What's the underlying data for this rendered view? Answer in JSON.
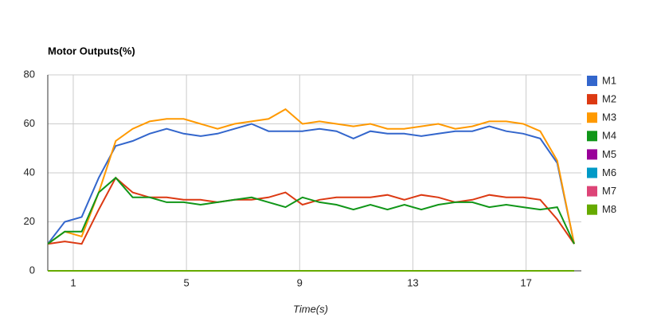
{
  "chart_data": {
    "type": "line",
    "title": "Motor Outputs(%)",
    "x_label": "Time(s)",
    "x": [
      0.1,
      0.7,
      1.3,
      1.9,
      2.5,
      3.1,
      3.7,
      4.3,
      4.9,
      5.5,
      6.1,
      6.7,
      7.3,
      7.9,
      8.5,
      9.1,
      9.7,
      10.3,
      10.9,
      11.5,
      12.1,
      12.7,
      13.3,
      13.9,
      14.5,
      15.1,
      15.7,
      16.3,
      16.9,
      17.5,
      18.1,
      18.7
    ],
    "xlim": [
      0.1,
      18.7
    ],
    "xticks": [
      1,
      5,
      9,
      13,
      17
    ],
    "ylim": [
      0,
      80
    ],
    "yticks": [
      0,
      20,
      40,
      60,
      80
    ],
    "grid": true,
    "legend": "right",
    "series": [
      {
        "name": "M1",
        "color": "#3366cc",
        "values": [
          11,
          20,
          22,
          38,
          51,
          53,
          56,
          58,
          56,
          55,
          56,
          58,
          60,
          57,
          57,
          57,
          58,
          57,
          54,
          57,
          56,
          56,
          55,
          56,
          57,
          57,
          59,
          57,
          56,
          54,
          44,
          11
        ]
      },
      {
        "name": "M2",
        "color": "#dc3912",
        "values": [
          11,
          12,
          11,
          25,
          38,
          32,
          30,
          30,
          29,
          29,
          28,
          29,
          29,
          30,
          32,
          27,
          29,
          30,
          30,
          30,
          31,
          29,
          31,
          30,
          28,
          29,
          31,
          30,
          30,
          29,
          21,
          11
        ]
      },
      {
        "name": "M3",
        "color": "#ff9900",
        "values": [
          11,
          16,
          14,
          32,
          53,
          58,
          61,
          62,
          62,
          60,
          58,
          60,
          61,
          62,
          66,
          60,
          61,
          60,
          59,
          60,
          58,
          58,
          59,
          60,
          58,
          59,
          61,
          61,
          60,
          57,
          45,
          11
        ]
      },
      {
        "name": "M4",
        "color": "#109618",
        "values": [
          11,
          16,
          16,
          32,
          38,
          30,
          30,
          28,
          28,
          27,
          28,
          29,
          30,
          28,
          26,
          30,
          28,
          27,
          25,
          27,
          25,
          27,
          25,
          27,
          28,
          28,
          26,
          27,
          26,
          25,
          26,
          11
        ]
      },
      {
        "name": "M5",
        "color": "#990099",
        "values": [
          0,
          0,
          0,
          0,
          0,
          0,
          0,
          0,
          0,
          0,
          0,
          0,
          0,
          0,
          0,
          0,
          0,
          0,
          0,
          0,
          0,
          0,
          0,
          0,
          0,
          0,
          0,
          0,
          0,
          0,
          0,
          0
        ]
      },
      {
        "name": "M6",
        "color": "#0099c6",
        "values": [
          0,
          0,
          0,
          0,
          0,
          0,
          0,
          0,
          0,
          0,
          0,
          0,
          0,
          0,
          0,
          0,
          0,
          0,
          0,
          0,
          0,
          0,
          0,
          0,
          0,
          0,
          0,
          0,
          0,
          0,
          0,
          0
        ]
      },
      {
        "name": "M7",
        "color": "#dd4477",
        "values": [
          0,
          0,
          0,
          0,
          0,
          0,
          0,
          0,
          0,
          0,
          0,
          0,
          0,
          0,
          0,
          0,
          0,
          0,
          0,
          0,
          0,
          0,
          0,
          0,
          0,
          0,
          0,
          0,
          0,
          0,
          0,
          0
        ]
      },
      {
        "name": "M8",
        "color": "#66aa00",
        "values": [
          0,
          0,
          0,
          0,
          0,
          0,
          0,
          0,
          0,
          0,
          0,
          0,
          0,
          0,
          0,
          0,
          0,
          0,
          0,
          0,
          0,
          0,
          0,
          0,
          0,
          0,
          0,
          0,
          0,
          0,
          0,
          0
        ]
      }
    ]
  }
}
